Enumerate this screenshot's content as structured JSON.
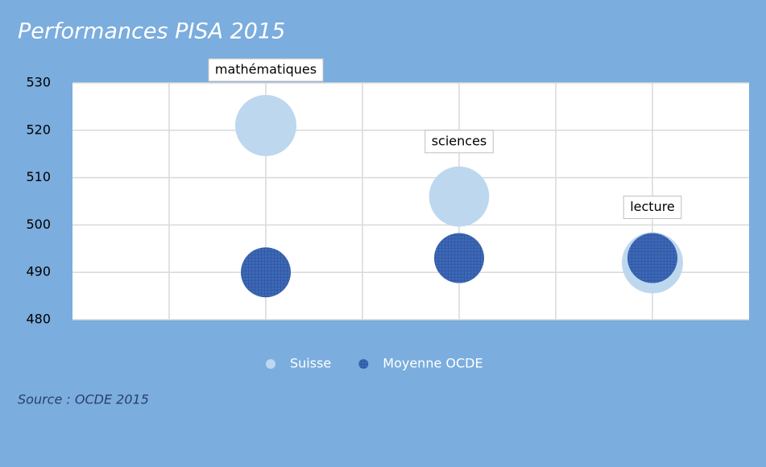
{
  "chart_data": {
    "type": "bubble",
    "title": "Performances PISA 2015",
    "source": "Source : OCDE 2015",
    "categories": [
      "mathématiques",
      "sciences",
      "lecture"
    ],
    "x": [
      2,
      4,
      6
    ],
    "series": [
      {
        "name": "Suisse",
        "color": "#bdd7ee",
        "values": [
          521,
          506,
          492
        ],
        "sizes": [
          1.5,
          1.45,
          1.5
        ]
      },
      {
        "name": "Moyenne OCDE",
        "color": "#3d68b8",
        "values": [
          490,
          493,
          493
        ],
        "sizes": [
          1,
          1,
          1
        ]
      }
    ],
    "xlim": [
      0,
      7
    ],
    "xticks": [
      1,
      2,
      3,
      4,
      5,
      6
    ],
    "ylim": [
      480,
      530
    ],
    "yticks": [
      480,
      490,
      500,
      510,
      520,
      530
    ],
    "grid": true,
    "legend": "bottom"
  }
}
